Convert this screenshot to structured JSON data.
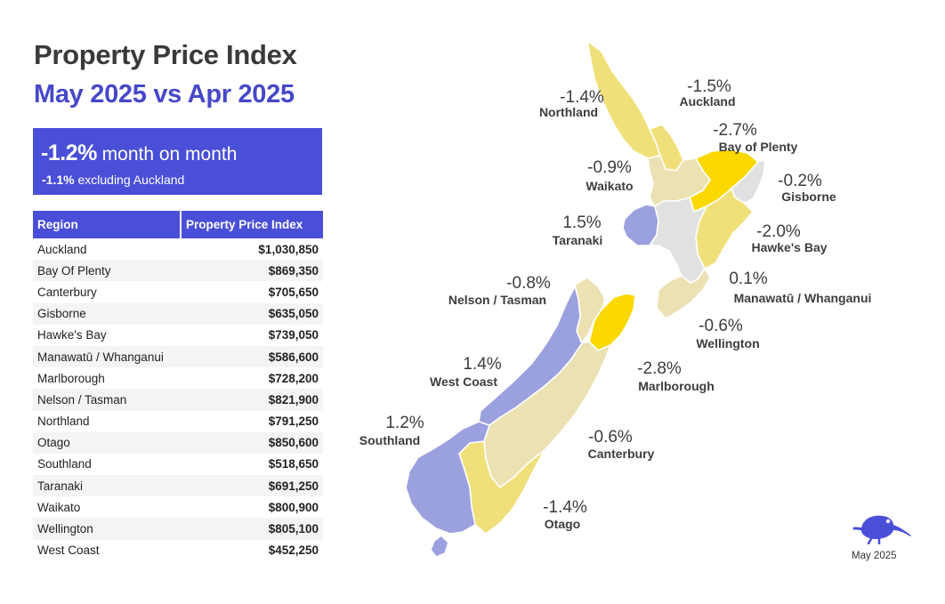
{
  "header": {
    "title": "Property Price Index",
    "subtitle": "May 2025 vs Apr 2025"
  },
  "summary": {
    "main_pct": "-1.2%",
    "main_text": "month on month",
    "sub_pct": "-1.1%",
    "sub_text": "excluding Auckland"
  },
  "table": {
    "columns": [
      "Region",
      "Property Price Index"
    ],
    "rows": [
      [
        "Auckland",
        "$1,030,850"
      ],
      [
        "Bay Of Plenty",
        "$869,350"
      ],
      [
        "Canterbury",
        "$705,650"
      ],
      [
        "Gisborne",
        "$635,050"
      ],
      [
        "Hawke's Bay",
        "$739,050"
      ],
      [
        "Manawatū / Whanganui",
        "$586,600"
      ],
      [
        "Marlborough",
        "$728,200"
      ],
      [
        "Nelson / Tasman",
        "$821,900"
      ],
      [
        "Northland",
        "$791,250"
      ],
      [
        "Otago",
        "$850,600"
      ],
      [
        "Southland",
        "$518,650"
      ],
      [
        "Taranaki",
        "$691,250"
      ],
      [
        "Waikato",
        "$800,900"
      ],
      [
        "Wellington",
        "$805,100"
      ],
      [
        "West Coast",
        "$452,250"
      ]
    ]
  },
  "map": {
    "colors": {
      "strong_negative": "#fad800",
      "negative": "#f0e07a",
      "mild_negative": "#ebe1b2",
      "neutral": "#e1e1e1",
      "positive": "#9ba0de",
      "label": "#3d3d3d"
    },
    "regions": [
      {
        "name": "Northland",
        "change": "-1.4%",
        "color_key": "negative"
      },
      {
        "name": "Auckland",
        "change": "-1.5%",
        "color_key": "negative"
      },
      {
        "name": "Bay of Plenty",
        "change": "-2.7%",
        "color_key": "strong_negative"
      },
      {
        "name": "Waikato",
        "change": "-0.9%",
        "color_key": "mild_negative"
      },
      {
        "name": "Gisborne",
        "change": "-0.2%",
        "color_key": "neutral"
      },
      {
        "name": "Taranaki",
        "change": "1.5%",
        "color_key": "positive"
      },
      {
        "name": "Hawke's Bay",
        "change": "-2.0%",
        "color_key": "negative"
      },
      {
        "name": "Manawatū / Whanganui",
        "change": "0.1%",
        "color_key": "neutral"
      },
      {
        "name": "Nelson / Tasman",
        "change": "-0.8%",
        "color_key": "mild_negative"
      },
      {
        "name": "Wellington",
        "change": "-0.6%",
        "color_key": "mild_negative"
      },
      {
        "name": "West Coast",
        "change": "1.4%",
        "color_key": "positive"
      },
      {
        "name": "Marlborough",
        "change": "-2.8%",
        "color_key": "strong_negative"
      },
      {
        "name": "Southland",
        "change": "1.2%",
        "color_key": "positive"
      },
      {
        "name": "Canterbury",
        "change": "-0.6%",
        "color_key": "mild_negative"
      },
      {
        "name": "Otago",
        "change": "-1.4%",
        "color_key": "negative"
      }
    ]
  },
  "footer": {
    "logo_icon": "kiwi-bird-icon",
    "date": "May 2025"
  }
}
